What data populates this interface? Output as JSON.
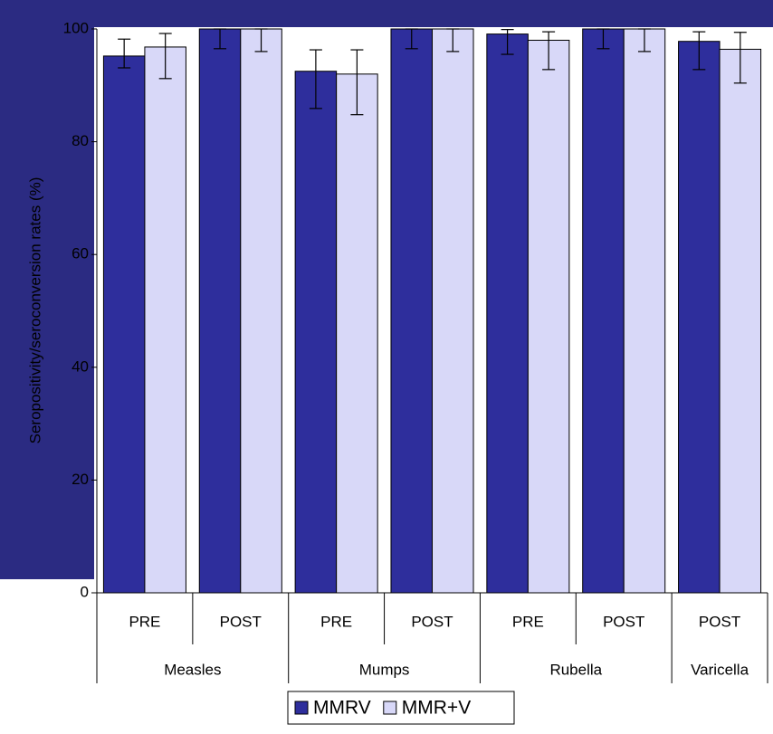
{
  "chart_data": {
    "type": "bar",
    "y_label": "Seropositivity/seroconversion rates (%)",
    "groups": [
      {
        "name": "Measles",
        "categories": [
          "PRE",
          "POST"
        ]
      },
      {
        "name": "Mumps",
        "categories": [
          "PRE",
          "POST"
        ]
      },
      {
        "name": "Rubella",
        "categories": [
          "PRE",
          "POST"
        ]
      },
      {
        "name": "Varicella",
        "categories": [
          "POST"
        ]
      }
    ],
    "series": [
      {
        "name": "MMRV",
        "color": "#2e2e9c",
        "values": [
          95.2,
          100,
          92.5,
          100,
          99.1,
          100,
          97.8
        ],
        "error_low": [
          93.1,
          96.5,
          85.9,
          96.5,
          95.5,
          96.5,
          92.8
        ],
        "error_high": [
          98.2,
          100,
          96.3,
          100,
          99.9,
          100,
          99.5
        ]
      },
      {
        "name": "MMR+V",
        "color": "#d8d8f8",
        "values": [
          96.8,
          100,
          92.0,
          100,
          98.0,
          100,
          96.4
        ],
        "error_low": [
          91.2,
          96.0,
          84.8,
          96.0,
          92.8,
          96.0,
          90.4
        ],
        "error_high": [
          99.2,
          100,
          96.3,
          100,
          99.5,
          100,
          99.4
        ]
      }
    ],
    "ylim": [
      0,
      100
    ],
    "yticks": [
      0,
      20,
      40,
      60,
      80,
      100
    ],
    "legend": "bottom"
  }
}
